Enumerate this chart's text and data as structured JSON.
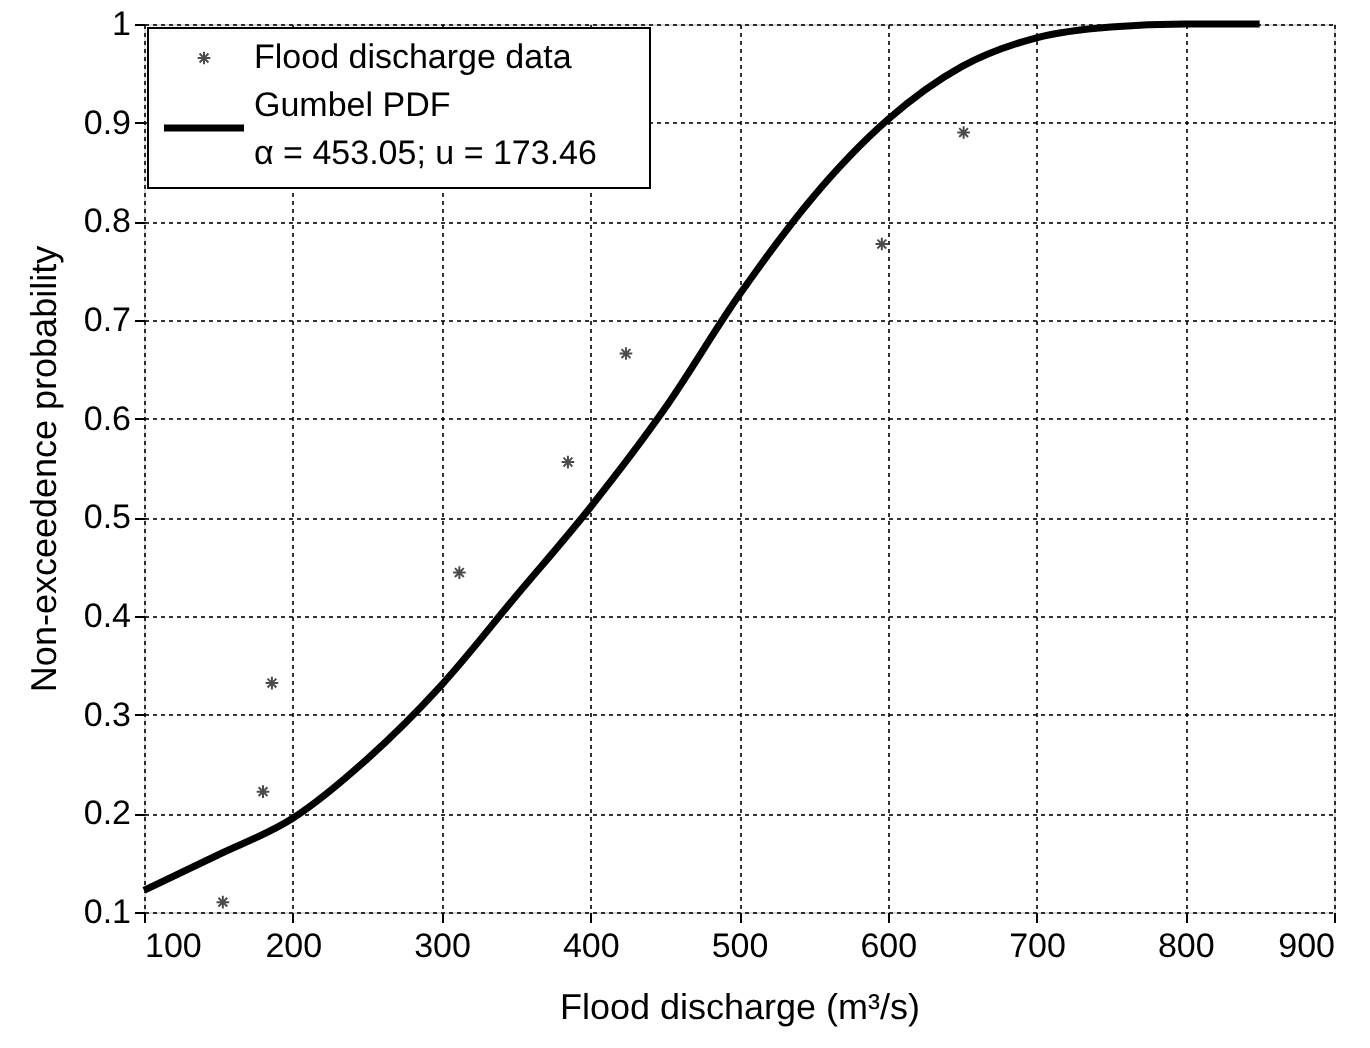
{
  "chart_data": {
    "type": "scatter",
    "xlabel": "Flood discharge (m³/s)",
    "ylabel": "Non-exceedence probability",
    "xlim": [
      100,
      900
    ],
    "xticks": [
      100,
      200,
      300,
      400,
      500,
      600,
      700,
      800,
      900
    ],
    "ylim": [
      0.1,
      1
    ],
    "yticks": [
      0.1,
      0.2,
      0.3,
      0.4,
      0.5,
      0.6,
      0.7,
      0.8,
      0.9,
      1
    ],
    "grid": true,
    "legend": "top left",
    "series": [
      {
        "name": "Flood discharge data",
        "marker": "cross",
        "color": "#000000",
        "x": [
          153,
          180,
          186,
          312,
          385,
          424,
          596,
          651
        ],
        "values": [
          0.11,
          0.222,
          0.332,
          0.444,
          0.556,
          0.666,
          0.777,
          0.89
        ]
      },
      {
        "name": "Gumbel PDF\nα = 453.05; u = 173.46",
        "type": "line",
        "marker": "none",
        "line_style": "solid",
        "color": "#000000",
        "x": [
          100,
          150,
          200,
          250,
          300,
          350,
          400,
          450,
          500,
          550,
          600,
          650,
          700,
          750,
          800,
          850
        ],
        "values": [
          0.122,
          0.158,
          0.195,
          0.255,
          0.33,
          0.42,
          0.51,
          0.61,
          0.725,
          0.825,
          0.903,
          0.957,
          0.986,
          0.997,
          1.0,
          1.0
        ]
      }
    ]
  }
}
